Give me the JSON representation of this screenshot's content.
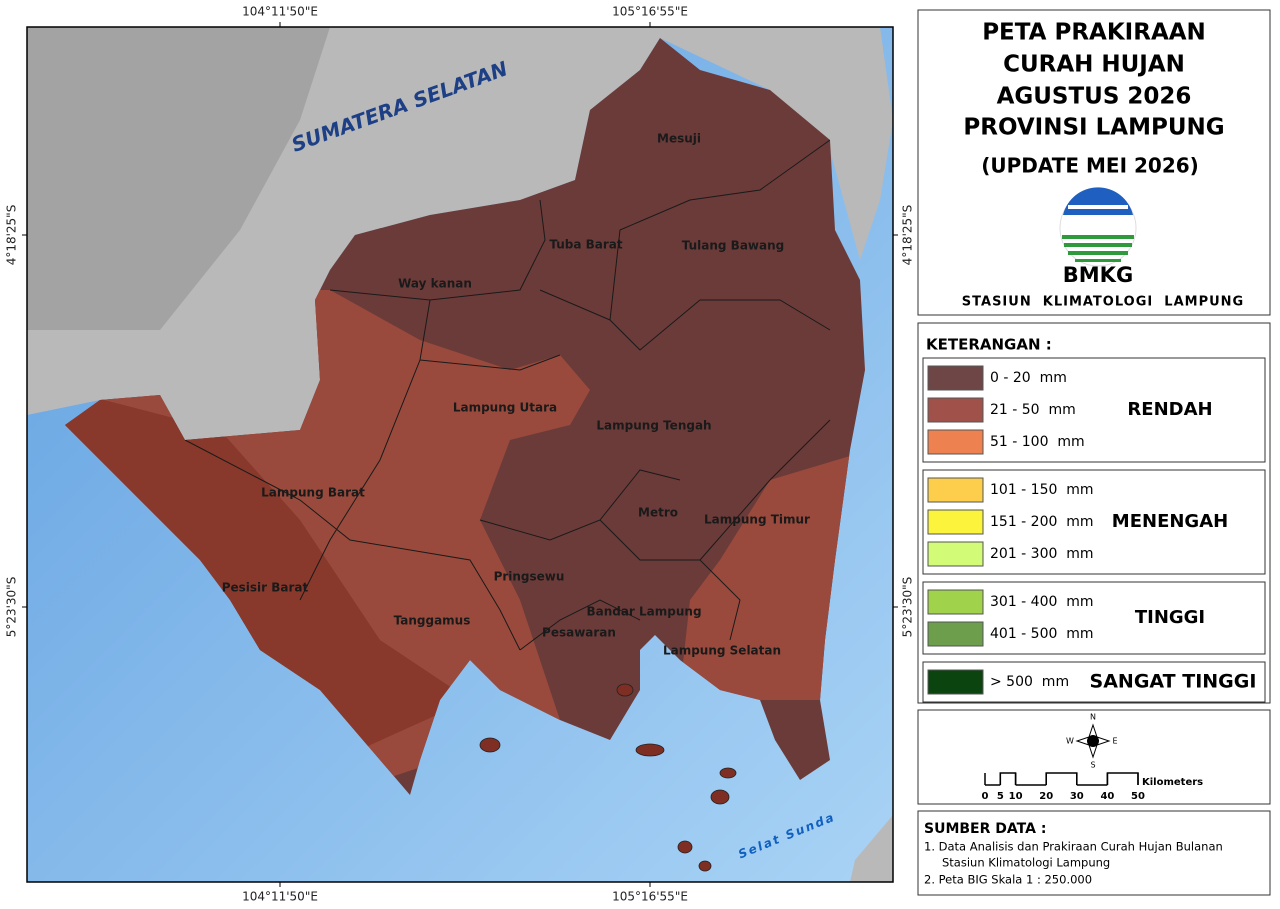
{
  "coordinates": {
    "top": [
      "104°11'50\"E",
      "105°16'55\"E"
    ],
    "bottom": [
      "104°11'50\"E",
      "105°16'55\"E"
    ],
    "left": [
      "4°18'25\"S",
      "5°23'30\"S"
    ],
    "right": [
      "4°18'25\"S",
      "5°23'30\"S"
    ]
  },
  "map": {
    "labels": [
      "SUMATERA SELATAN",
      "Mesuji",
      "Tuba Barat",
      "Tulang Bawang",
      "Way kanan",
      "Lampung Utara",
      "Lampung Tengah",
      "Lampung Barat",
      "Metro",
      "Lampung Timur",
      "Pringsewu",
      "Pesisir Barat",
      "Bandar Lampung",
      "Tanggamus",
      "Pesawaran",
      "Lampung Selatan",
      "Selat Sunda"
    ]
  },
  "title": {
    "lines": [
      "PETA PRAKIRAAN",
      "CURAH HUJAN",
      "AGUSTUS 2026",
      "PROVINSI LAMPUNG"
    ],
    "update": "(UPDATE MEI 2026)",
    "logo": "BMKG",
    "station": "STASIUN  KLIMATOLOGI  LAMPUNG"
  },
  "legend": {
    "heading": "KETERANGAN :",
    "groups": [
      {
        "label": "RENDAH",
        "items": [
          {
            "color": "#6e4646",
            "label": "0 - 20  mm"
          },
          {
            "color": "#a0524a",
            "label": "21 - 50  mm"
          },
          {
            "color": "#ed8250",
            "label": "51 - 100  mm"
          }
        ]
      },
      {
        "label": "MENENGAH",
        "items": [
          {
            "color": "#fcce4c",
            "label": "101 - 150  mm"
          },
          {
            "color": "#fcf43c",
            "label": "151 - 200  mm"
          },
          {
            "color": "#d2fc78",
            "label": "201 - 300  mm"
          }
        ]
      },
      {
        "label": "TINGGI",
        "items": [
          {
            "color": "#a0d24c",
            "label": "301 - 400  mm"
          },
          {
            "color": "#6c9e4c",
            "label": "401 - 500  mm"
          }
        ]
      },
      {
        "label": "SANGAT TINGGI",
        "items": [
          {
            "color": "#0c4410",
            "label": "> 500  mm"
          }
        ]
      }
    ]
  },
  "scale": {
    "compass": [
      "N",
      "E",
      "S",
      "W"
    ],
    "ticks": [
      0,
      5,
      10,
      20,
      30,
      40,
      50
    ],
    "unit": "Kilometers"
  },
  "source": {
    "heading": "SUMBER DATA :",
    "lines": [
      "1. Data Analisis dan Prakiraan Curah Hujan Bulanan",
      "Stasiun Klimatologi Lampung",
      "2. Peta BIG Skala 1 : 250.000"
    ]
  }
}
